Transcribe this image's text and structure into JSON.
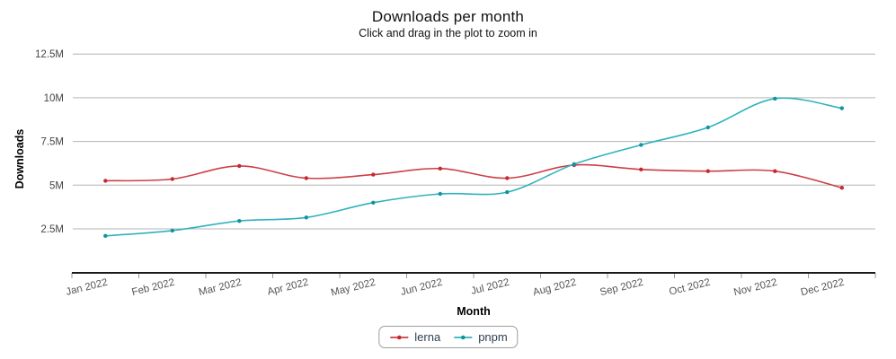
{
  "header": {
    "title": "Downloads per month",
    "subtitle": "Click and drag in the plot to zoom in"
  },
  "chart_data": {
    "type": "line",
    "title": "Downloads per month",
    "subtitle": "Click and drag in the plot to zoom in",
    "xlabel": "Month",
    "ylabel": "Downloads",
    "unit": "M (millions of downloads per month)",
    "categories": [
      "Jan 2022",
      "Feb 2022",
      "Mar 2022",
      "Apr 2022",
      "May 2022",
      "Jun 2022",
      "Jul 2022",
      "Aug 2022",
      "Sep 2022",
      "Oct 2022",
      "Nov 2022",
      "Dec 2022"
    ],
    "x_tick_rotation_deg": -14,
    "ylim": [
      0,
      13.1
    ],
    "yticks": [
      {
        "value": 2.5,
        "label": "2.5M"
      },
      {
        "value": 5,
        "label": "5M"
      },
      {
        "value": 7.5,
        "label": "7.5M"
      },
      {
        "value": 10,
        "label": "10M"
      },
      {
        "value": 12.5,
        "label": "12.5M"
      }
    ],
    "grid": "horizontal",
    "grid_color": "#b4b4b4",
    "axis_color": "#1a1a1a",
    "tick_label_color": "#555555",
    "legend_position": "bottom",
    "legend_text_color": "#2d3e50",
    "series": [
      {
        "name": "lerna",
        "line_color": "#cd3e46",
        "marker_color": "#c62830",
        "values": [
          5.25,
          5.35,
          6.1,
          5.4,
          5.6,
          5.95,
          5.4,
          6.15,
          5.9,
          5.8,
          5.8,
          4.85
        ]
      },
      {
        "name": "pnpm",
        "line_color": "#2fb2bd",
        "marker_color": "#1094a0",
        "values": [
          2.1,
          2.4,
          2.95,
          3.15,
          4.0,
          4.5,
          4.6,
          6.2,
          7.3,
          8.3,
          9.95,
          9.4
        ]
      }
    ]
  }
}
